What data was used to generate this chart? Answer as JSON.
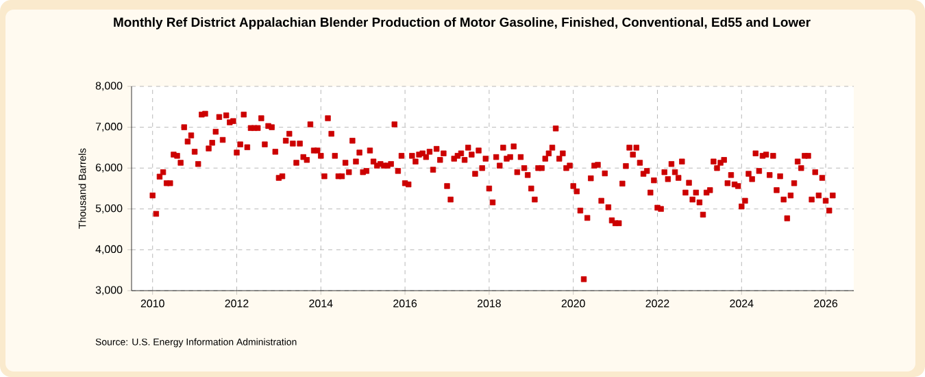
{
  "chart_data": {
    "type": "scatter",
    "title": "Monthly Ref District Appalachian Blender Production of Motor Gasoline, Finished, Conventional, Ed55 and Lower",
    "ylabel": "Thousand Barrels",
    "annotations": [
      "Source: U.S. Energy Information Administration"
    ],
    "xlim": [
      "2009-07",
      "2026-09"
    ],
    "xticks": [
      "2010",
      "2012",
      "2014",
      "2016",
      "2018",
      "2020",
      "2022",
      "2024",
      "2026"
    ],
    "ylim": [
      3000,
      8000
    ],
    "yticks": [
      {
        "value": 3000,
        "label": "3,000"
      },
      {
        "value": 4000,
        "label": "4,000"
      },
      {
        "value": 5000,
        "label": "5,000"
      },
      {
        "value": 6000,
        "label": "6,000"
      },
      {
        "value": 7000,
        "label": "7,000"
      },
      {
        "value": 8000,
        "label": "8,000"
      }
    ],
    "grid": true,
    "marker": "square",
    "x": [
      "2010-01",
      "2010-02",
      "2010-03",
      "2010-04",
      "2010-05",
      "2010-06",
      "2010-07",
      "2010-08",
      "2010-09",
      "2010-10",
      "2010-11",
      "2010-12",
      "2011-01",
      "2011-02",
      "2011-03",
      "2011-04",
      "2011-05",
      "2011-06",
      "2011-07",
      "2011-08",
      "2011-09",
      "2011-10",
      "2011-11",
      "2011-12",
      "2012-01",
      "2012-02",
      "2012-03",
      "2012-04",
      "2012-05",
      "2012-06",
      "2012-07",
      "2012-08",
      "2012-09",
      "2012-10",
      "2012-11",
      "2012-12",
      "2013-01",
      "2013-02",
      "2013-03",
      "2013-04",
      "2013-05",
      "2013-06",
      "2013-07",
      "2013-08",
      "2013-09",
      "2013-10",
      "2013-11",
      "2013-12",
      "2014-01",
      "2014-02",
      "2014-03",
      "2014-04",
      "2014-05",
      "2014-06",
      "2014-07",
      "2014-08",
      "2014-09",
      "2014-10",
      "2014-11",
      "2014-12",
      "2015-01",
      "2015-02",
      "2015-03",
      "2015-04",
      "2015-05",
      "2015-06",
      "2015-07",
      "2015-08",
      "2015-09",
      "2015-10",
      "2015-11",
      "2015-12",
      "2016-01",
      "2016-02",
      "2016-03",
      "2016-04",
      "2016-05",
      "2016-06",
      "2016-07",
      "2016-08",
      "2016-09",
      "2016-10",
      "2016-11",
      "2016-12",
      "2017-01",
      "2017-02",
      "2017-03",
      "2017-04",
      "2017-05",
      "2017-06",
      "2017-07",
      "2017-08",
      "2017-09",
      "2017-10",
      "2017-11",
      "2017-12",
      "2018-01",
      "2018-02",
      "2018-03",
      "2018-04",
      "2018-05",
      "2018-06",
      "2018-07",
      "2018-08",
      "2018-09",
      "2018-10",
      "2018-11",
      "2018-12",
      "2019-01",
      "2019-02",
      "2019-03",
      "2019-04",
      "2019-05",
      "2019-06",
      "2019-07",
      "2019-08",
      "2019-09",
      "2019-10",
      "2019-11",
      "2019-12",
      "2020-01",
      "2020-02",
      "2020-03",
      "2020-04",
      "2020-05",
      "2020-06",
      "2020-07",
      "2020-08",
      "2020-09",
      "2020-10",
      "2020-11",
      "2020-12",
      "2021-01",
      "2021-02",
      "2021-03",
      "2021-04",
      "2021-05",
      "2021-06",
      "2021-07",
      "2021-08",
      "2021-09",
      "2021-10",
      "2021-11",
      "2021-12",
      "2022-01",
      "2022-02",
      "2022-03",
      "2022-04",
      "2022-05",
      "2022-06",
      "2022-07",
      "2022-08",
      "2022-09",
      "2022-10",
      "2022-11",
      "2022-12",
      "2023-01",
      "2023-02",
      "2023-03",
      "2023-04",
      "2023-05",
      "2023-06",
      "2023-07",
      "2023-08",
      "2023-09",
      "2023-10",
      "2023-11",
      "2023-12",
      "2024-01",
      "2024-02",
      "2024-03",
      "2024-04",
      "2024-05",
      "2024-06",
      "2024-07",
      "2024-08",
      "2024-09",
      "2024-10",
      "2024-11",
      "2024-12",
      "2025-01",
      "2025-02",
      "2025-03",
      "2025-04",
      "2025-05",
      "2025-06",
      "2025-07",
      "2025-08",
      "2025-09",
      "2025-10",
      "2025-11",
      "2025-12",
      "2026-01",
      "2026-02",
      "2026-03"
    ],
    "series": [
      {
        "color": "#cc0000",
        "values": [
          5330,
          4880,
          5790,
          5900,
          5630,
          5630,
          6330,
          6300,
          6130,
          7000,
          6650,
          6800,
          6400,
          6100,
          7310,
          7330,
          6480,
          6620,
          6890,
          7250,
          6690,
          7290,
          7120,
          7150,
          6380,
          6580,
          7310,
          6510,
          6980,
          6980,
          6980,
          7220,
          6580,
          7030,
          7000,
          6400,
          5760,
          5800,
          6670,
          6840,
          6600,
          6130,
          6600,
          6270,
          6200,
          7070,
          6430,
          6430,
          6300,
          5800,
          7220,
          6840,
          6300,
          5800,
          5800,
          6130,
          5900,
          6670,
          6160,
          6380,
          5900,
          5930,
          6430,
          6160,
          6060,
          6100,
          6060,
          6060,
          6100,
          7070,
          5930,
          6300,
          5630,
          5600,
          6300,
          6160,
          6330,
          6360,
          6270,
          6400,
          5960,
          6470,
          6200,
          6360,
          5560,
          5230,
          6230,
          6300,
          6360,
          6200,
          6500,
          6330,
          5860,
          6430,
          6000,
          6230,
          5500,
          5160,
          6270,
          6060,
          6500,
          6230,
          6270,
          6530,
          5900,
          6270,
          6000,
          5830,
          5500,
          5230,
          6000,
          6000,
          6230,
          6360,
          6500,
          6970,
          6230,
          6360,
          6000,
          6060,
          5560,
          5430,
          4960,
          3280,
          4780,
          5750,
          6060,
          6080,
          5200,
          5870,
          5040,
          4720,
          4650,
          4650,
          5620,
          6050,
          6500,
          6330,
          6500,
          6130,
          5860,
          5930,
          5400,
          5700,
          5030,
          5000,
          5900,
          5730,
          6100,
          5900,
          5760,
          6160,
          5400,
          5640,
          5230,
          5400,
          5160,
          4860,
          5400,
          5460,
          6160,
          6000,
          6130,
          6200,
          5630,
          5830,
          5600,
          5560,
          5060,
          5200,
          5860,
          5730,
          6360,
          5930,
          6300,
          6330,
          5830,
          6300,
          5460,
          5800,
          5230,
          4770,
          5330,
          5630,
          6160,
          6000,
          6300,
          6300,
          5230,
          5900,
          5330,
          5760,
          5200,
          4960,
          5330
        ]
      }
    ]
  }
}
